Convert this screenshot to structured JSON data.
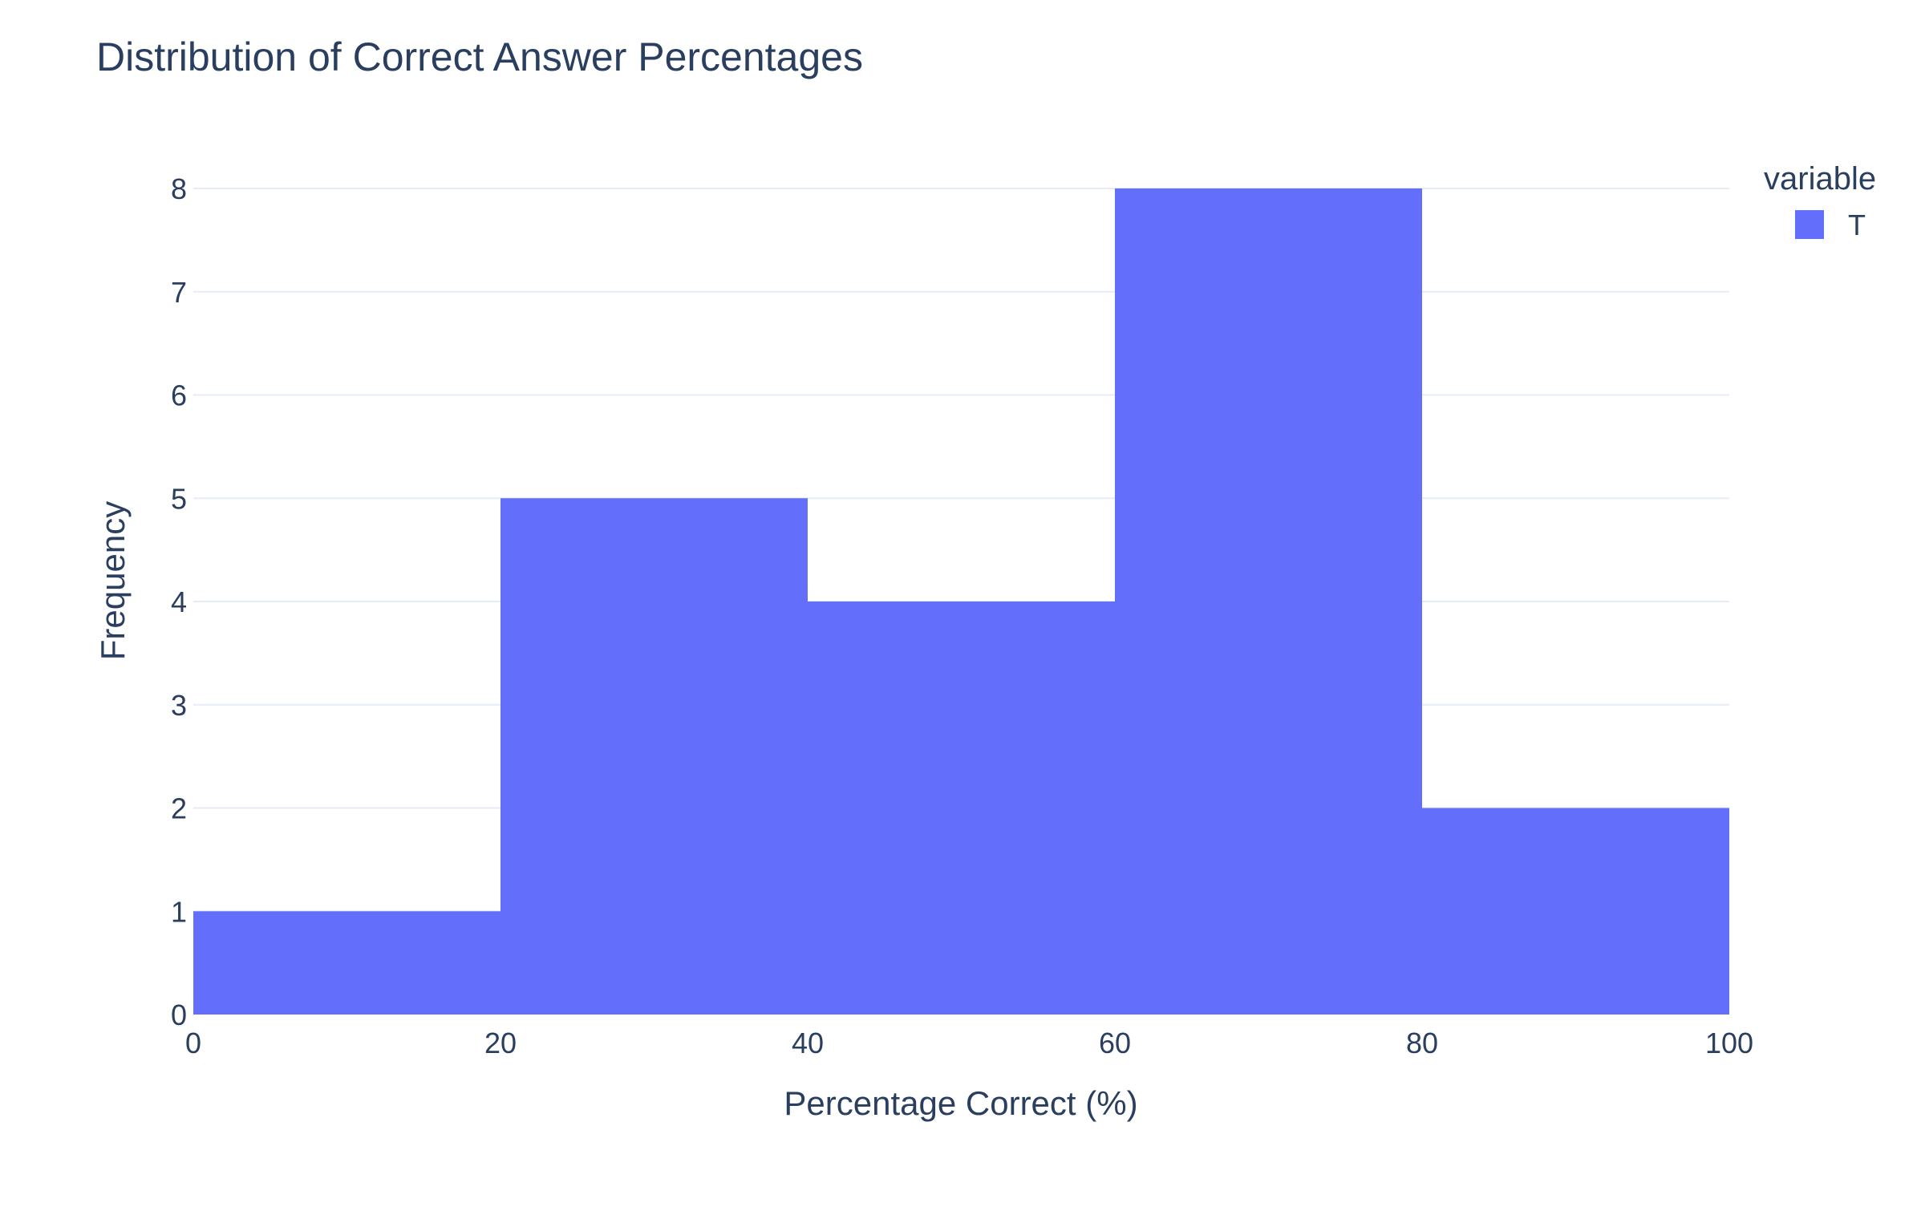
{
  "chart_data": {
    "type": "bar",
    "title": "Distribution of Correct Answer Percentages",
    "xlabel": "Percentage Correct (%)",
    "ylabel": "Frequency",
    "bins": [
      {
        "start": 0,
        "end": 20,
        "count": 1
      },
      {
        "start": 20,
        "end": 40,
        "count": 5
      },
      {
        "start": 40,
        "end": 60,
        "count": 4
      },
      {
        "start": 60,
        "end": 80,
        "count": 8
      },
      {
        "start": 80,
        "end": 100,
        "count": 2
      }
    ],
    "xlim": [
      0,
      100
    ],
    "ylim": [
      0,
      8
    ],
    "xticks": [
      0,
      20,
      40,
      60,
      80,
      100
    ],
    "yticks": [
      0,
      1,
      2,
      3,
      4,
      5,
      6,
      7,
      8
    ],
    "grid": "horizontal",
    "legend": {
      "title": "variable",
      "placement": "top-right",
      "items": [
        {
          "name": "T",
          "color": "#636efa"
        }
      ]
    },
    "colors": {
      "bar": "#636efa",
      "grid": "#e5ecf6",
      "text": "#2a3f5f",
      "background": "#ffffff"
    }
  }
}
